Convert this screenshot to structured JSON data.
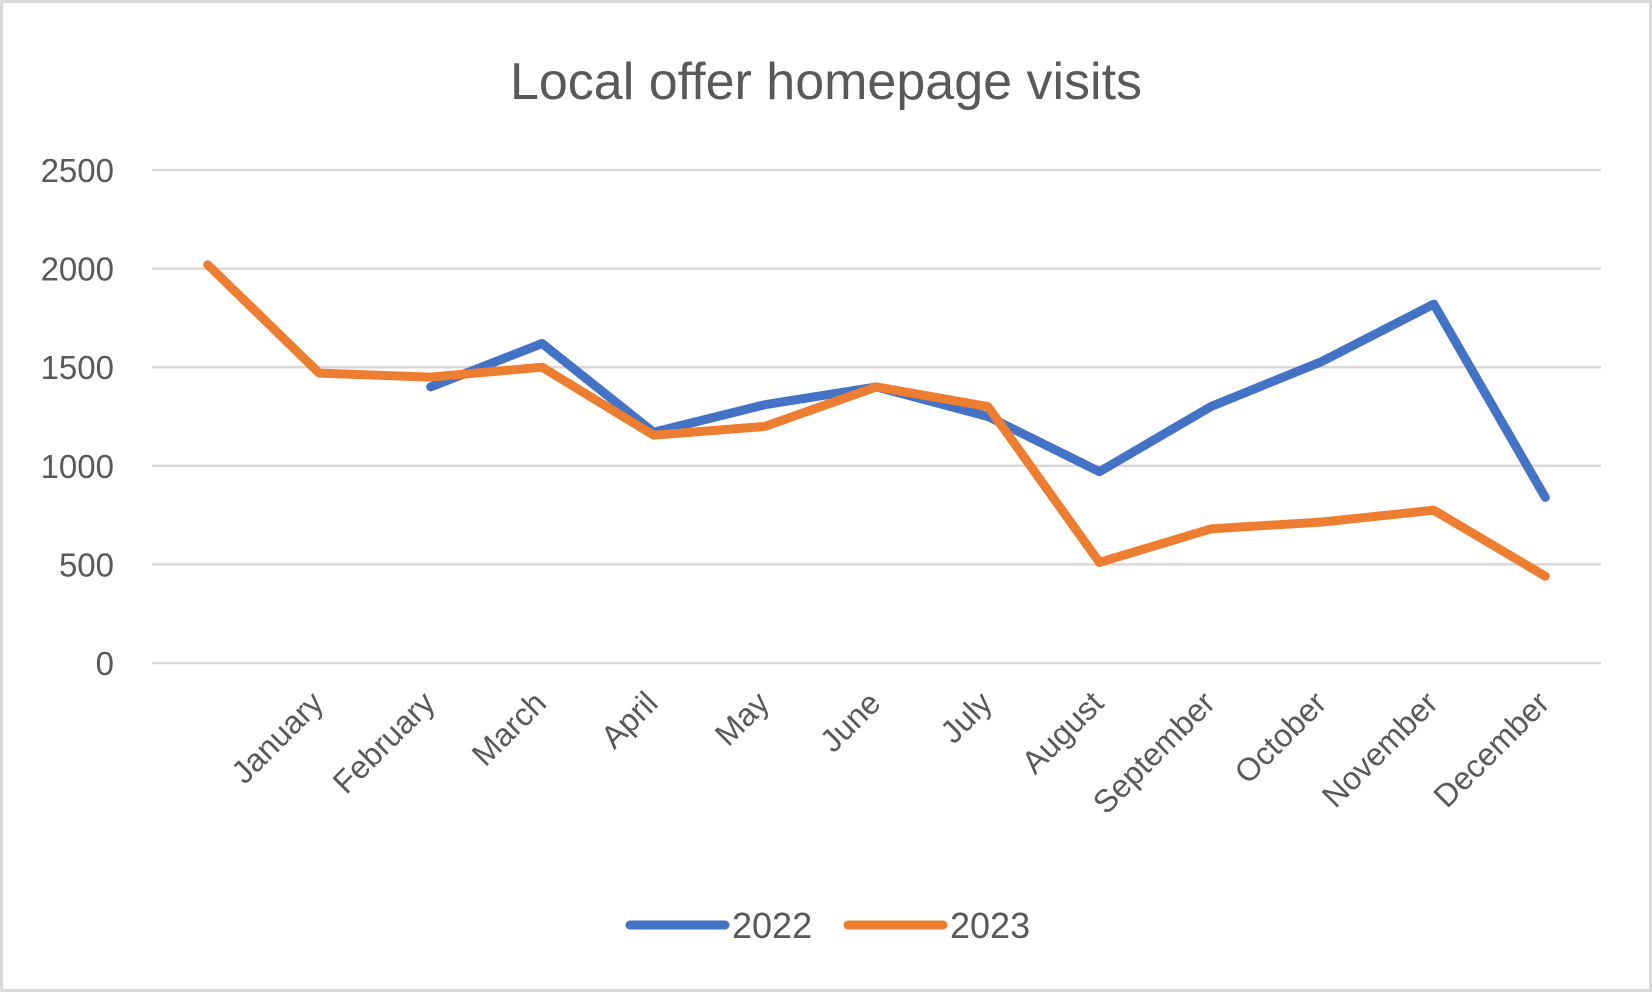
{
  "chart_data": {
    "type": "line",
    "title": "Local offer homepage visits",
    "xlabel": "",
    "ylabel": "",
    "ylim": [
      0,
      2500
    ],
    "yticks": [
      0,
      500,
      1000,
      1500,
      2000,
      2500
    ],
    "grid": true,
    "legend_position": "bottom",
    "categories": [
      "",
      "January",
      "February",
      "March",
      "April",
      "May",
      "June",
      "July",
      "August",
      "September",
      "October",
      "November",
      "December"
    ],
    "series": [
      {
        "name": "2022",
        "color": "#4472C4",
        "values": [
          null,
          null,
          1400,
          1620,
          1170,
          1310,
          1400,
          1250,
          970,
          1300,
          1530,
          1820,
          840
        ]
      },
      {
        "name": "2023",
        "color": "#ED7D31",
        "values": [
          2020,
          1470,
          1450,
          1500,
          1155,
          1200,
          1400,
          1300,
          510,
          680,
          715,
          775,
          440
        ]
      }
    ]
  },
  "legend": {
    "items": [
      {
        "label": "2022",
        "color": "#4472C4"
      },
      {
        "label": "2023",
        "color": "#ED7D31"
      }
    ]
  },
  "colors": {
    "text": "#595959",
    "grid": "#d9d9d9",
    "border": "#d9d9d9"
  }
}
